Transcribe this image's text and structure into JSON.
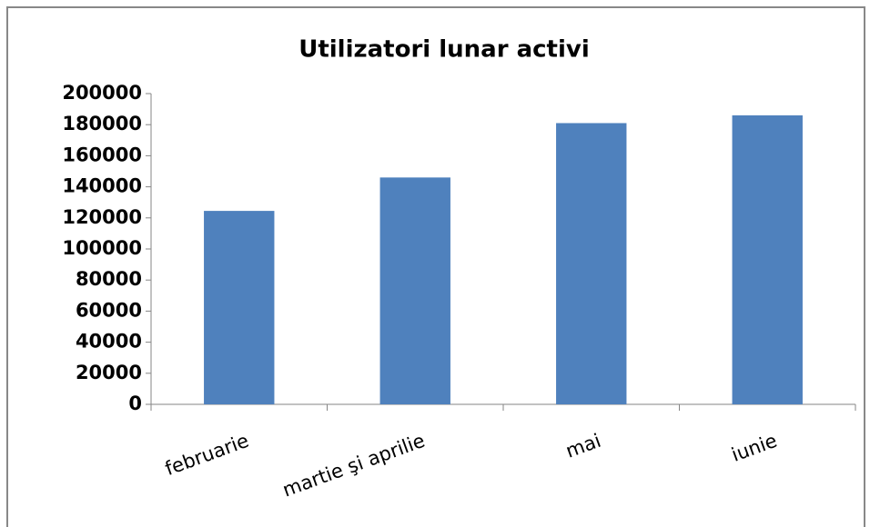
{
  "chart_data": {
    "type": "bar",
    "title": "Utilizatori lunar activi",
    "categories": [
      "februarie",
      "martie şi aprilie",
      "mai",
      "iunie"
    ],
    "values": [
      124500,
      146000,
      181000,
      186000
    ],
    "color": "#4f81bd",
    "ylim": [
      0,
      200000
    ],
    "yticks": [
      0,
      20000,
      40000,
      60000,
      80000,
      100000,
      120000,
      140000,
      160000,
      180000,
      200000
    ],
    "grid": false
  }
}
